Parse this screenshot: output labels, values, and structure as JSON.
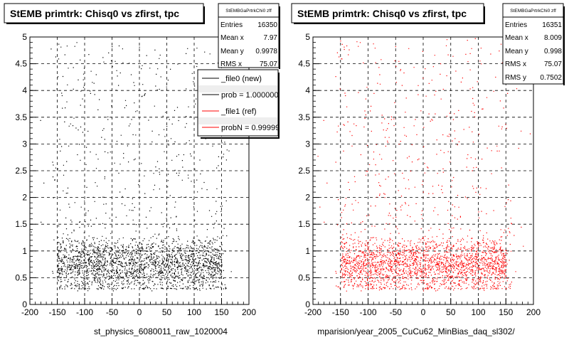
{
  "chart_data": [
    {
      "type": "scatter",
      "title": "StEMB primtrk: Chisq0 vs zfirst, tpc",
      "xlabel": "st_physics_6080011_raw_1020004",
      "ylabel": "",
      "xlim": [
        -200,
        200
      ],
      "ylim": [
        0,
        5
      ],
      "x_ticks": [
        "-200",
        "-150",
        "-100",
        "-50",
        "0",
        "50",
        "100",
        "150",
        "200"
      ],
      "y_ticks": [
        "0",
        "0.5",
        "1",
        "1.5",
        "2",
        "2.5",
        "3",
        "3.5",
        "4",
        "4.5",
        "5"
      ],
      "grid": true,
      "marker_color": "#000000",
      "stats": {
        "name": "StEMBGaPrtrkChi0 zff",
        "rows": [
          {
            "label": "Entries",
            "value": "16350"
          },
          {
            "label": "Mean x",
            "value": "7.97"
          },
          {
            "label": "Mean y",
            "value": "0.9978"
          },
          {
            "label": "RMS x",
            "value": "75.07"
          }
        ]
      },
      "legend": {
        "placement": "top-right",
        "entries": [
          {
            "label": "_file0 (new)",
            "color": "#000000"
          },
          {
            "label": "prob = 1.000000",
            "color": "#000000"
          },
          {
            "label": "_file1 (ref)",
            "color": "#ff0000"
          },
          {
            "label": "probN = 0.999999",
            "color": "#ff0000"
          }
        ]
      },
      "distribution": {
        "entries": 16350,
        "x_core_range": [
          -150,
          150
        ],
        "y_core_range": [
          0.25,
          1.3
        ],
        "y_tail_max": 5
      }
    },
    {
      "type": "scatter",
      "title": "StEMB primtrk: Chisq0 vs zfirst, tpc",
      "xlabel": "mparision/year_2005_CuCu62_MinBias_daq_sl302/",
      "ylabel": "",
      "xlim": [
        -200,
        200
      ],
      "ylim": [
        0,
        5
      ],
      "x_ticks": [
        "-200",
        "-150",
        "-100",
        "-50",
        "0",
        "50",
        "100",
        "150",
        "200"
      ],
      "y_ticks": [
        "0",
        "0.5",
        "1",
        "1.5",
        "2",
        "2.5",
        "3",
        "3.5",
        "4",
        "4.5",
        "5"
      ],
      "grid": true,
      "marker_color": "#ff0000",
      "stats": {
        "name": "StEMBGaPrtrkChi0 zff",
        "rows": [
          {
            "label": "Entries",
            "value": "16351"
          },
          {
            "label": "Mean x",
            "value": "8.009"
          },
          {
            "label": "Mean y",
            "value": "0.998"
          },
          {
            "label": "RMS x",
            "value": "75.07"
          },
          {
            "label": "RMS y",
            "value": "0.7502"
          }
        ]
      },
      "distribution": {
        "entries": 16351,
        "x_core_range": [
          -150,
          150
        ],
        "y_core_range": [
          0.25,
          1.3
        ],
        "y_tail_max": 5
      }
    }
  ]
}
